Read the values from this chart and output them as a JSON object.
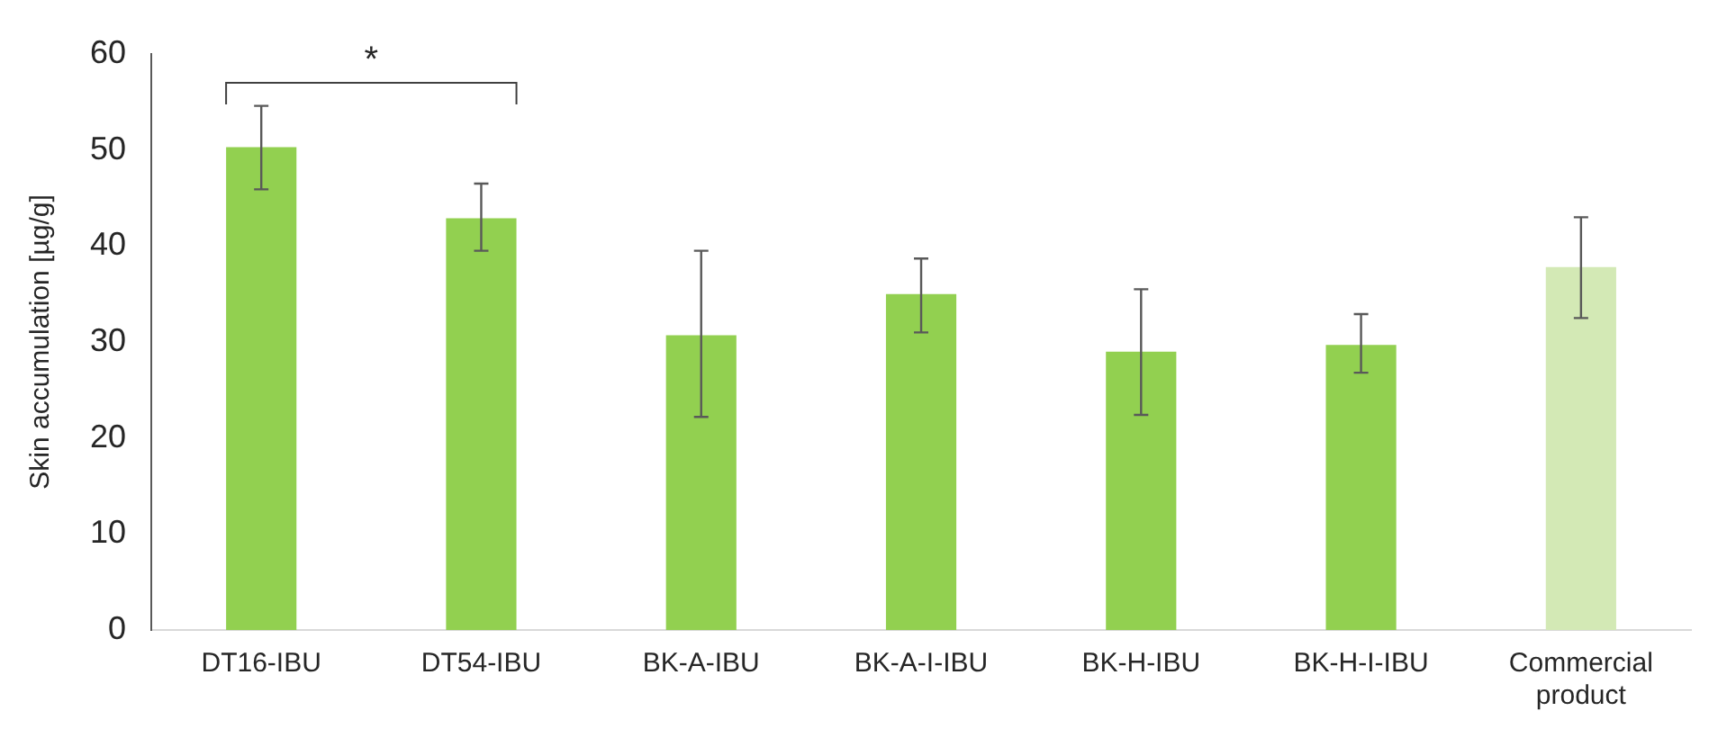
{
  "chart_data": {
    "type": "bar",
    "ylabel": "Skin accumulation [µg/g]",
    "categories": [
      "DT16-IBU",
      "DT54-IBU",
      "BK-A-IBU",
      "BK-A-I-IBU",
      "BK-H-IBU",
      "BK-H-I-IBU",
      "Commercial product"
    ],
    "values": [
      50.3,
      42.9,
      30.7,
      35.0,
      29.0,
      29.7,
      37.8
    ],
    "colors": [
      "#92d050",
      "#92d050",
      "#92d050",
      "#92d050",
      "#92d050",
      "#92d050",
      "#d3e9b5"
    ],
    "errors": [
      [
        45.9,
        54.6
      ],
      [
        39.5,
        46.5
      ],
      [
        22.2,
        39.5
      ],
      [
        31.0,
        38.7
      ],
      [
        22.4,
        35.5
      ],
      [
        26.8,
        32.9
      ],
      [
        32.5,
        43.0
      ]
    ],
    "ylim": [
      0,
      60
    ],
    "yticks": [
      0,
      10,
      20,
      30,
      40,
      50,
      60
    ],
    "grid": false,
    "legend": false,
    "annotations": [
      "*"
    ]
  }
}
